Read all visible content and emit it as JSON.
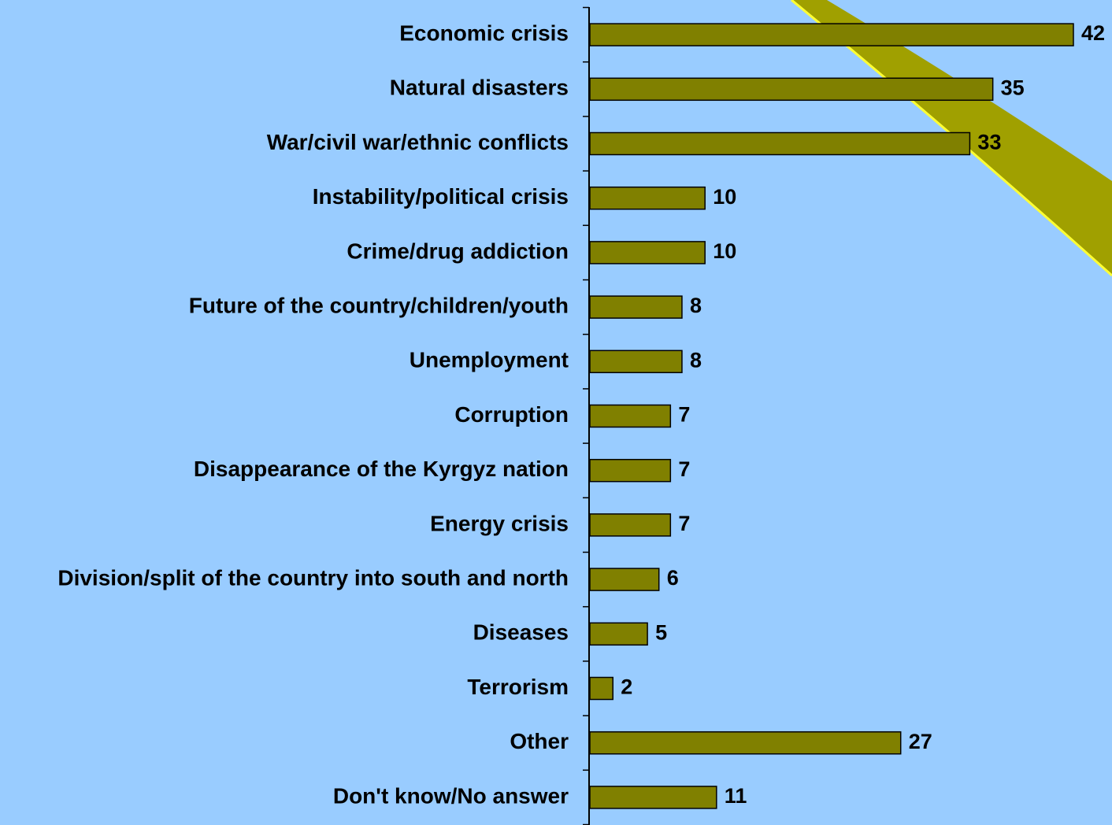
{
  "chart_data": {
    "type": "bar",
    "orientation": "horizontal",
    "color": "#808000",
    "categories": [
      "Economic crisis",
      "Natural disasters",
      "War/civil war/ethnic conflicts",
      "Instability/political crisis",
      "Crime/drug addiction",
      "Future of the country/children/youth",
      "Unemployment",
      "Corruption",
      "Disappearance of the Kyrgyz nation",
      "Energy crisis",
      "Division/split of the country into south and north",
      "Diseases",
      "Terrorism",
      "Other",
      "Don't know/No answer"
    ],
    "values": [
      42,
      35,
      33,
      10,
      10,
      8,
      8,
      7,
      7,
      7,
      6,
      5,
      2,
      27,
      11
    ]
  }
}
